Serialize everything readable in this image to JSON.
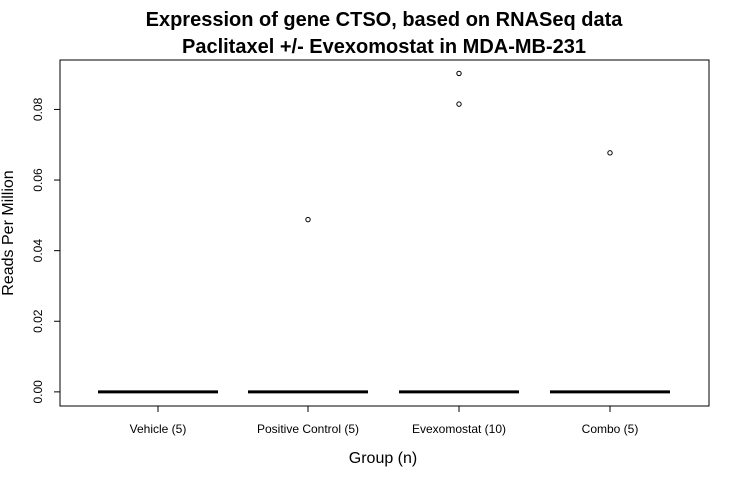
{
  "chart_data": {
    "type": "box",
    "title": "Expression of gene CTSO, based on RNASeq data",
    "subtitle": "Paclitaxel +/- Evexomostat in MDA-MB-231",
    "xlabel": "Group (n)",
    "ylabel": "Reads Per Million",
    "categories": [
      "Vehicle (5)",
      "Positive Control (5)",
      "Evexomostat (10)",
      "Combo (5)"
    ],
    "ylim": [
      -0.004,
      0.094
    ],
    "yticks": [
      0.0,
      0.02,
      0.04,
      0.06,
      0.08
    ],
    "ytick_labels": [
      "0.00",
      "0.02",
      "0.04",
      "0.06",
      "0.08"
    ],
    "boxes": [
      {
        "category": "Vehicle (5)",
        "min": 0,
        "q1": 0,
        "median": 0,
        "q3": 0,
        "max": 0,
        "outliers": []
      },
      {
        "category": "Positive Control (5)",
        "min": 0,
        "q1": 0,
        "median": 0,
        "q3": 0,
        "max": 0,
        "outliers": [
          0.0488
        ]
      },
      {
        "category": "Evexomostat (10)",
        "min": 0,
        "q1": 0,
        "median": 0,
        "q3": 0,
        "max": 0,
        "outliers": [
          0.0815,
          0.0902
        ]
      },
      {
        "category": "Combo (5)",
        "min": 0,
        "q1": 0,
        "median": 0,
        "q3": 0,
        "max": 0,
        "outliers": [
          0.0677
        ]
      }
    ],
    "grid": false,
    "legend": "none"
  }
}
